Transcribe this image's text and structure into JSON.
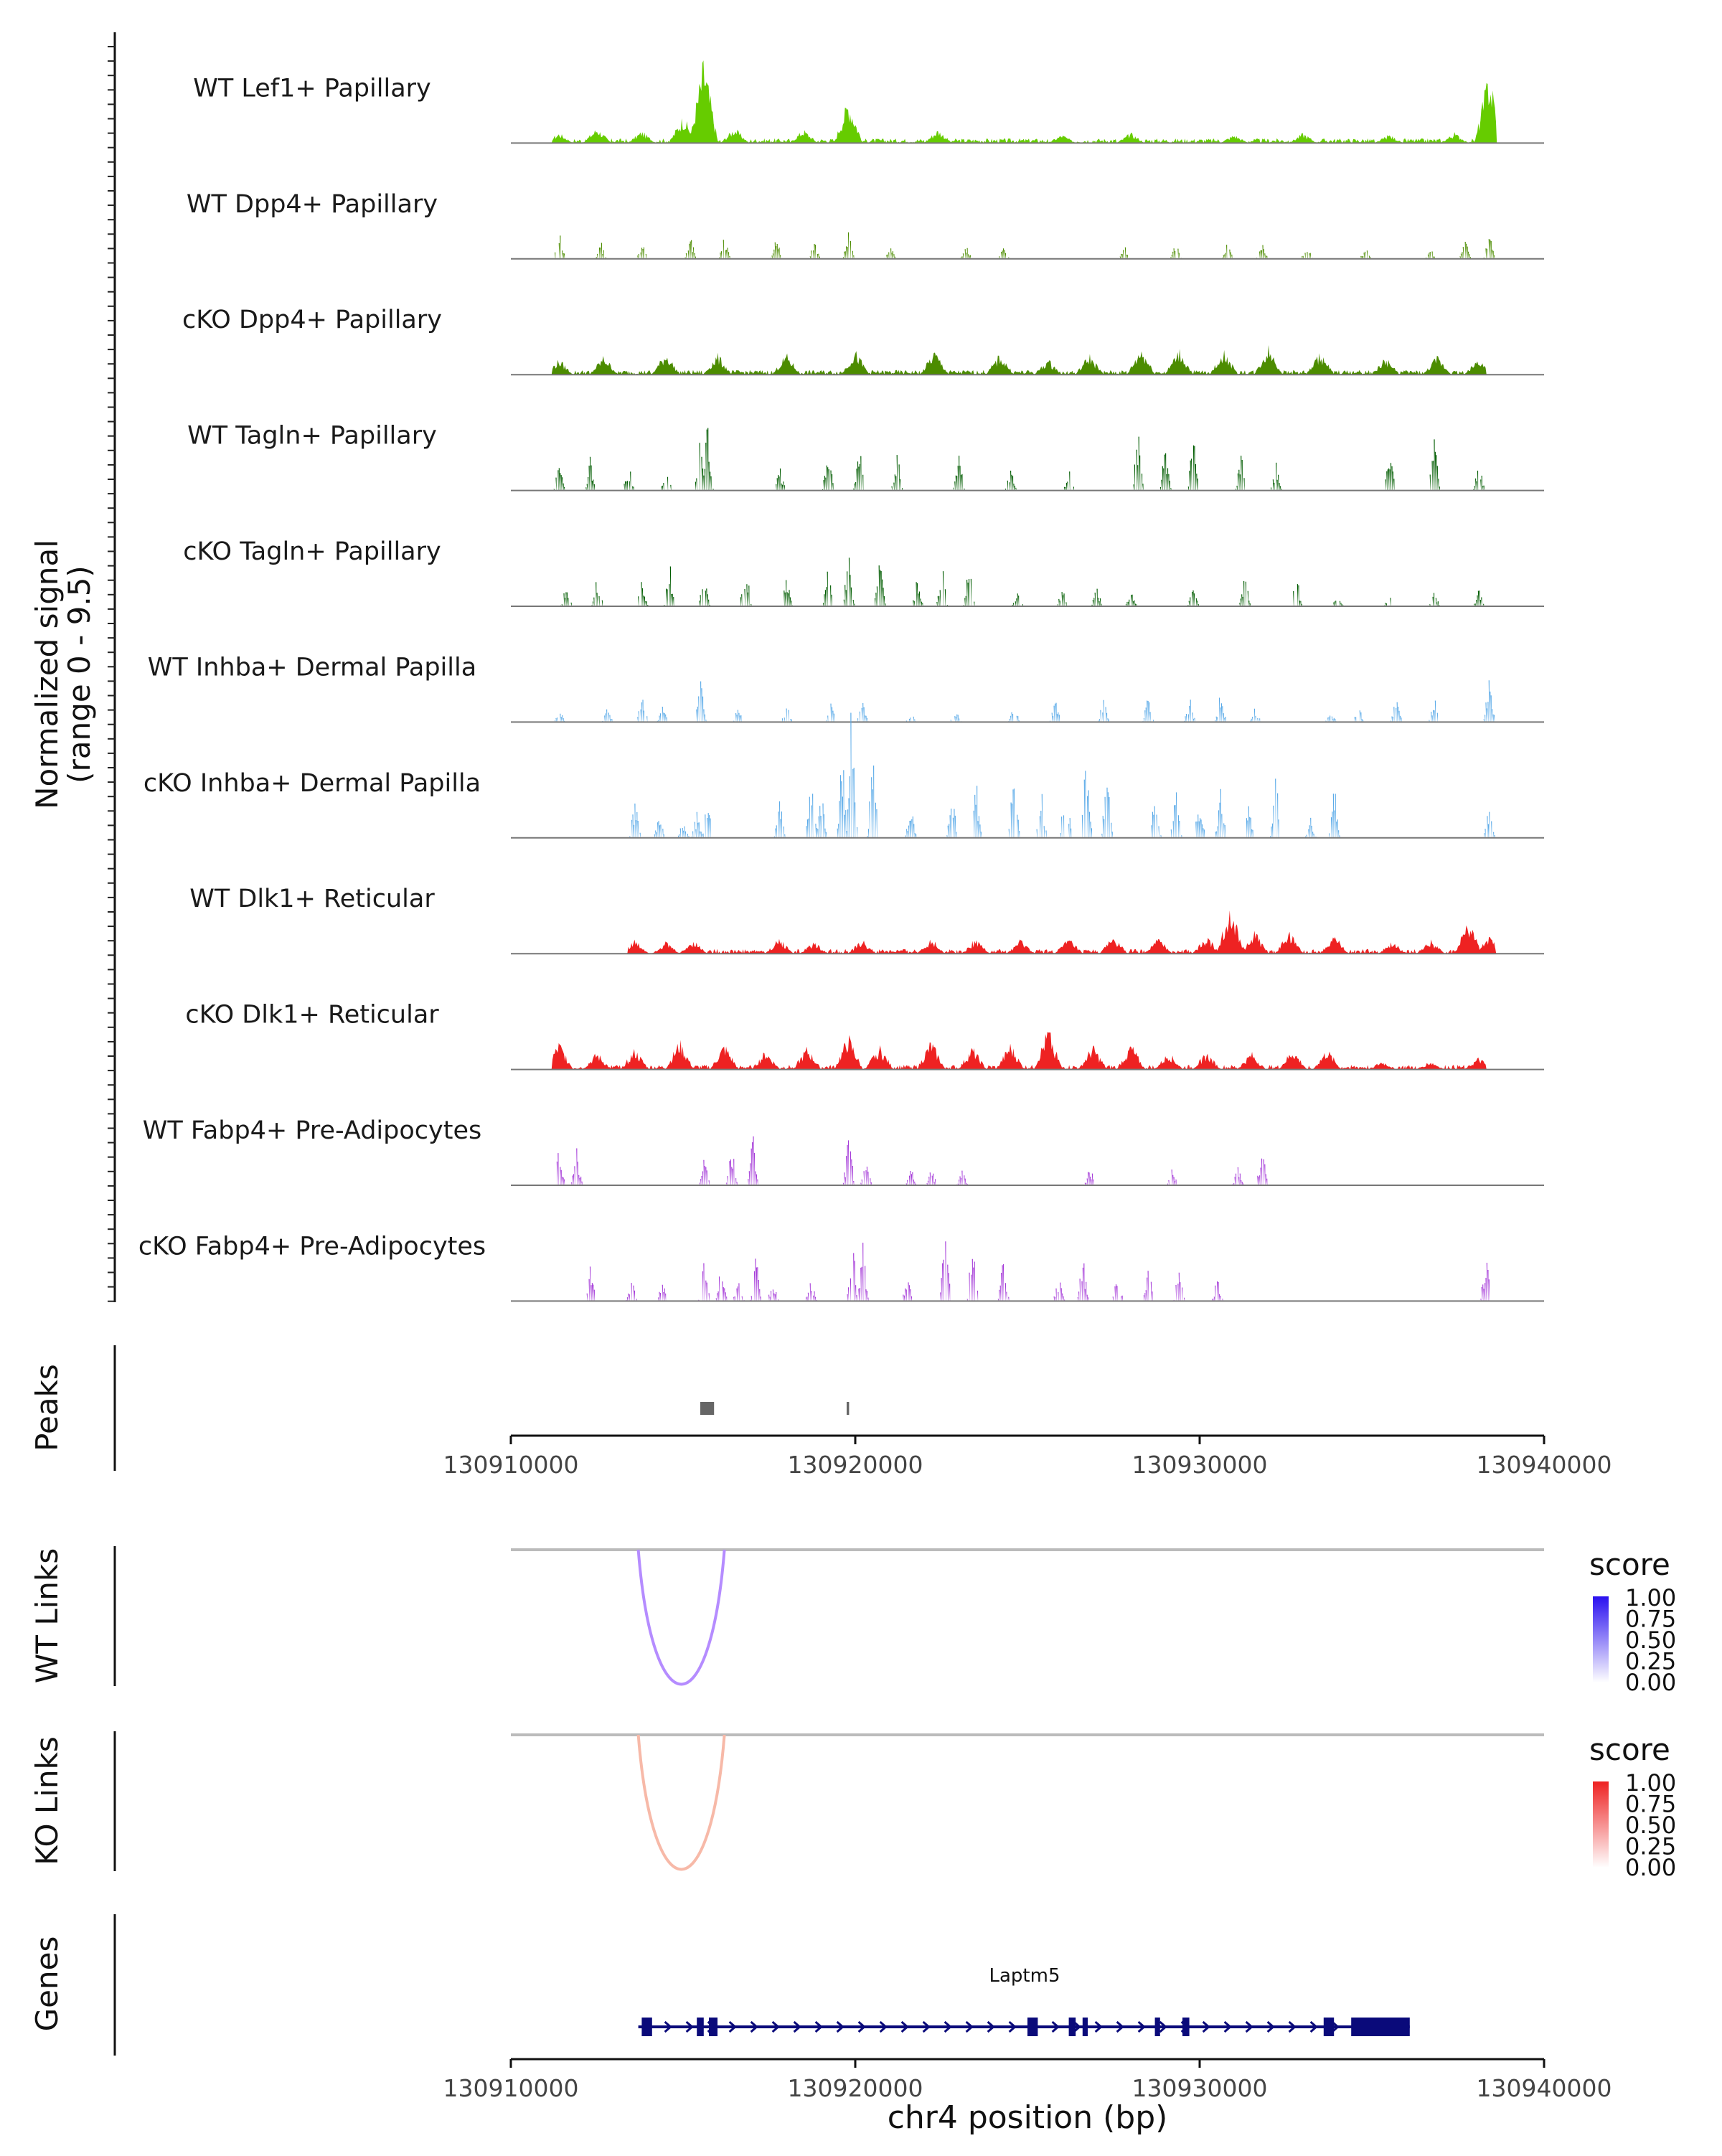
{
  "chart_data": {
    "type": "area",
    "title": "",
    "xlabel": "chr4 position (bp)",
    "xlim": [
      130910000,
      130940000
    ],
    "x_ticks": [
      "130910000",
      "130920000",
      "130930000",
      "130940000"
    ],
    "signal_axis_label": [
      "Normalized signal",
      "(range 0 - 9.5)"
    ],
    "ylim": [
      0,
      9.5
    ],
    "colors": {
      "lef1": "#66cc00",
      "dpp4": "#4c8c00",
      "tagln": "#005c00",
      "inhba": "#5aaae8",
      "dlk1": "#ee2222",
      "fabp4": "#a63cd9",
      "wt_link": "#b58cff",
      "ko_link": "#f7b9a8",
      "gene": "#0a0a7a",
      "baseline": "#777777"
    },
    "series": [
      {
        "name": "WT Lef1+ Papillary",
        "color_key": "lef1",
        "style": "dense",
        "x": [
          130911400,
          130912500,
          130913800,
          130915000,
          130915600,
          130916500,
          130918500,
          130919800,
          130922400,
          130926000,
          130928000,
          130931000,
          130933000,
          130935500,
          130937400,
          130938400
        ],
        "values": [
          0.6,
          0.9,
          0.7,
          1.6,
          5.0,
          0.9,
          0.8,
          2.6,
          0.8,
          0.5,
          0.6,
          0.5,
          0.6,
          0.5,
          0.6,
          4.2
        ]
      },
      {
        "name": "WT Dpp4+ Papillary",
        "color_key": "dpp4",
        "style": "spiky",
        "x": [
          130911400,
          130912600,
          130913800,
          130915200,
          130916200,
          130917700,
          130918800,
          130919800,
          130921000,
          130923200,
          130924300,
          130927800,
          130929300,
          130930800,
          130931800,
          130933100,
          130934800,
          130936700,
          130937700,
          130938400
        ],
        "values": [
          1.8,
          1.0,
          1.0,
          1.4,
          1.5,
          1.3,
          1.2,
          1.9,
          0.8,
          0.9,
          0.7,
          0.8,
          1.0,
          1.3,
          1.0,
          0.9,
          0.7,
          0.6,
          1.2,
          1.6
        ]
      },
      {
        "name": "cKO Dpp4+ Papillary",
        "color_key": "dpp4",
        "style": "dense",
        "x": [
          130911400,
          130912700,
          130914500,
          130916000,
          130918000,
          130920000,
          130922300,
          130924200,
          130925600,
          130926800,
          130928300,
          130929400,
          130930700,
          130932000,
          130933500,
          130935400,
          130936900,
          130938100
        ],
        "values": [
          0.9,
          1.1,
          1.3,
          1.2,
          1.2,
          1.4,
          1.4,
          1.2,
          0.9,
          1.2,
          1.6,
          1.5,
          1.4,
          1.7,
          1.3,
          1.0,
          1.1,
          1.0
        ]
      },
      {
        "name": "WT Tagln+ Papillary",
        "color_key": "tagln",
        "style": "spiky",
        "x": [
          130911400,
          130912300,
          130913400,
          130914500,
          130915500,
          130915700,
          130917800,
          130919200,
          130920100,
          130921200,
          130923000,
          130924500,
          130926200,
          130928200,
          130929000,
          130929800,
          130931200,
          130932200,
          130935500,
          130936800,
          130938100
        ],
        "values": [
          1.8,
          2.0,
          1.7,
          1.3,
          4.5,
          3.9,
          1.3,
          2.6,
          2.7,
          2.3,
          2.0,
          1.5,
          1.3,
          3.9,
          3.0,
          3.3,
          3.0,
          1.6,
          2.8,
          3.0,
          1.6
        ]
      },
      {
        "name": "cKO Tagln+ Papillary",
        "color_key": "tagln",
        "style": "spiky",
        "x": [
          130911600,
          130912500,
          130913800,
          130914600,
          130915600,
          130916800,
          130918000,
          130919200,
          130919800,
          130920700,
          130921800,
          130922500,
          130923300,
          130924700,
          130926000,
          130927000,
          130928000,
          130929800,
          130931300,
          130932800,
          130934000,
          130935500,
          130936800,
          130938100
        ],
        "values": [
          1.2,
          2.0,
          1.6,
          2.6,
          1.8,
          2.8,
          1.8,
          2.4,
          3.7,
          2.6,
          1.8,
          2.7,
          3.1,
          1.0,
          1.0,
          1.1,
          1.0,
          1.1,
          2.0,
          1.8,
          1.0,
          0.8,
          0.8,
          1.0
        ]
      },
      {
        "name": "WT Inhba+ Dermal Papilla",
        "color_key": "inhba",
        "style": "spiky",
        "x": [
          130911400,
          130912800,
          130913800,
          130914400,
          130915500,
          130916600,
          130918000,
          130919300,
          130920200,
          130921600,
          130922900,
          130924600,
          130925800,
          130927200,
          130928500,
          130929700,
          130930600,
          130931600,
          130933800,
          130934600,
          130935700,
          130936800,
          130938400
        ],
        "values": [
          0.7,
          0.9,
          1.8,
          1.2,
          3.0,
          1.0,
          1.0,
          1.2,
          1.5,
          0.6,
          0.7,
          1.0,
          1.3,
          1.5,
          1.7,
          1.4,
          1.8,
          1.0,
          0.7,
          0.9,
          1.4,
          1.5,
          3.0
        ]
      },
      {
        "name": "cKO Inhba+ Dermal Papilla",
        "color_key": "inhba",
        "style": "spiky",
        "x": [
          130913600,
          130914300,
          130915000,
          130915400,
          130915700,
          130917800,
          130918700,
          130919000,
          130919600,
          130919900,
          130920500,
          130921600,
          130922800,
          130923500,
          130924600,
          130925400,
          130926100,
          130926700,
          130927300,
          130928700,
          130929300,
          130930000,
          130930600,
          130931400,
          130932200,
          130933200,
          130933900,
          130938400
        ],
        "values": [
          2.5,
          1.2,
          1.1,
          1.6,
          2.5,
          2.2,
          4.5,
          3.3,
          5.2,
          9.2,
          4.9,
          1.8,
          2.6,
          3.6,
          4.1,
          2.8,
          4.3,
          5.0,
          4.1,
          2.8,
          3.0,
          3.0,
          2.9,
          1.9,
          3.8,
          1.2,
          3.0,
          2.2
        ]
      },
      {
        "name": "WT Dlk1+ Reticular",
        "color_key": "dlk1",
        "style": "dense",
        "x": [
          130913600,
          130914500,
          130915300,
          130917800,
          130918800,
          130920200,
          130922200,
          130923500,
          130924800,
          130926200,
          130927500,
          130928800,
          130930200,
          130930900,
          130931600,
          130932600,
          130933900,
          130935600,
          130936700,
          130937800,
          130938400
        ],
        "values": [
          0.8,
          0.7,
          0.8,
          0.9,
          0.7,
          0.8,
          0.9,
          0.9,
          0.8,
          0.9,
          1.0,
          0.9,
          1.0,
          2.8,
          1.3,
          1.3,
          1.1,
          0.7,
          0.8,
          2.0,
          1.0
        ]
      },
      {
        "name": "cKO Dlk1+ Reticular",
        "color_key": "dlk1",
        "style": "dense",
        "x": [
          130911400,
          130912500,
          130913600,
          130914900,
          130916200,
          130917400,
          130918600,
          130919800,
          130920700,
          130922200,
          130923400,
          130924500,
          130925600,
          130926900,
          130928000,
          130929100,
          130930200,
          130931500,
          130932700,
          130933700,
          130935300,
          130936700,
          130938100
        ],
        "values": [
          1.6,
          1.0,
          1.2,
          1.7,
          1.5,
          1.1,
          1.3,
          2.0,
          1.4,
          1.7,
          1.3,
          1.5,
          2.4,
          1.4,
          1.5,
          1.0,
          1.0,
          1.0,
          1.2,
          1.2,
          0.5,
          0.5,
          0.7
        ]
      },
      {
        "name": "WT Fabp4+ Pre-Adipocytes",
        "color_key": "fabp4",
        "style": "spiky",
        "x": [
          130911400,
          130911900,
          130915600,
          130916400,
          130917000,
          130919800,
          130920300,
          130921600,
          130922200,
          130923100,
          130926800,
          130929200,
          130931100,
          130931800
        ],
        "values": [
          2.3,
          2.0,
          1.6,
          2.2,
          3.2,
          3.0,
          1.4,
          1.0,
          1.0,
          1.0,
          1.1,
          1.0,
          1.0,
          2.2
        ]
      },
      {
        "name": "cKO Fabp4+ Pre-Adipocytes",
        "color_key": "fabp4",
        "style": "spiky",
        "x": [
          130912300,
          130913500,
          130914400,
          130915600,
          130916100,
          130916600,
          130917100,
          130917600,
          130918700,
          130919900,
          130920200,
          130921500,
          130922600,
          130923400,
          130924300,
          130925900,
          130926600,
          130927600,
          130928500,
          130929400,
          130930500,
          130938300
        ],
        "values": [
          2.6,
          1.3,
          1.2,
          2.6,
          2.2,
          1.4,
          2.6,
          1.2,
          1.3,
          3.8,
          3.4,
          1.4,
          4.6,
          4.3,
          2.6,
          1.5,
          2.6,
          1.7,
          2.6,
          2.2,
          1.3,
          2.6
        ]
      }
    ],
    "peaks": {
      "label": "Peaks",
      "regions": [
        [
          130915500,
          130915900
        ],
        [
          130919750,
          130919820
        ]
      ]
    },
    "links": [
      {
        "label": "WT Links",
        "start": 130913700,
        "end": 130916200,
        "score": 0.45,
        "color_key": "wt_link",
        "legend": {
          "title": "score",
          "ticks": [
            "1.00",
            "0.75",
            "0.50",
            "0.25",
            "0.00"
          ],
          "color_high": "#2a10f0",
          "color_low": "#ffffff"
        }
      },
      {
        "label": "KO Links",
        "start": 130913700,
        "end": 130916200,
        "score": 0.25,
        "color_key": "ko_link",
        "legend": {
          "title": "score",
          "ticks": [
            "1.00",
            "0.75",
            "0.50",
            "0.25",
            "0.00"
          ],
          "color_high": "#ee2222",
          "color_low": "#ffffff"
        }
      }
    ],
    "genes": {
      "label": "Genes",
      "name": "Laptm5",
      "start": 130913700,
      "end": 130936100,
      "strand": "+",
      "exons": [
        [
          130913800,
          130914100
        ],
        [
          130915400,
          130915600
        ],
        [
          130915750,
          130916000
        ],
        [
          130925000,
          130925300
        ],
        [
          130926200,
          130926400
        ],
        [
          130926600,
          130926750
        ],
        [
          130928700,
          130928850
        ],
        [
          130929500,
          130929700
        ],
        [
          130933600,
          130933900
        ],
        [
          130934400,
          130936100
        ]
      ]
    }
  }
}
